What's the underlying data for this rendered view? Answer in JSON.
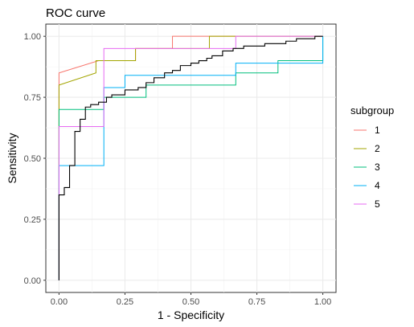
{
  "chart_data": {
    "type": "line",
    "title": "ROC curve",
    "xlabel": "1 - Specificity",
    "ylabel": "Sensitivity",
    "xlim": [
      -0.05,
      1.05
    ],
    "ylim": [
      -0.05,
      1.05
    ],
    "xticks": [
      0.0,
      0.25,
      0.5,
      0.75,
      1.0
    ],
    "yticks": [
      0.0,
      0.25,
      0.5,
      0.75,
      1.0
    ],
    "x_tick_labels": [
      "0.00",
      "0.25",
      "0.50",
      "0.75",
      "1.00"
    ],
    "y_tick_labels": [
      "0.00",
      "0.25",
      "0.50",
      "0.75",
      "1.00"
    ],
    "grid": true,
    "legend": {
      "title": "subgroup",
      "position": "right"
    },
    "overall": {
      "color": "#000000",
      "x": [
        0,
        0,
        0.02,
        0.02,
        0.04,
        0.04,
        0.06,
        0.06,
        0.08,
        0.08,
        0.1,
        0.1,
        0.12,
        0.12,
        0.15,
        0.15,
        0.18,
        0.18,
        0.2,
        0.2,
        0.25,
        0.25,
        0.3,
        0.3,
        0.33,
        0.33,
        0.36,
        0.36,
        0.4,
        0.4,
        0.43,
        0.43,
        0.46,
        0.46,
        0.5,
        0.5,
        0.53,
        0.53,
        0.56,
        0.56,
        0.58,
        0.58,
        0.62,
        0.62,
        0.66,
        0.66,
        0.7,
        0.7,
        0.74,
        0.74,
        0.78,
        0.78,
        0.82,
        0.82,
        0.86,
        0.86,
        0.9,
        0.9,
        0.94,
        0.94,
        0.97,
        0.97,
        1.0,
        1.0
      ],
      "y": [
        0,
        0.35,
        0.35,
        0.38,
        0.38,
        0.47,
        0.47,
        0.61,
        0.61,
        0.66,
        0.66,
        0.71,
        0.71,
        0.72,
        0.72,
        0.73,
        0.73,
        0.75,
        0.75,
        0.76,
        0.76,
        0.78,
        0.78,
        0.79,
        0.79,
        0.81,
        0.81,
        0.83,
        0.83,
        0.85,
        0.85,
        0.86,
        0.86,
        0.88,
        0.88,
        0.89,
        0.89,
        0.9,
        0.9,
        0.91,
        0.91,
        0.92,
        0.92,
        0.94,
        0.94,
        0.95,
        0.95,
        0.96,
        0.96,
        0.96,
        0.96,
        0.97,
        0.97,
        0.97,
        0.97,
        0.98,
        0.98,
        0.99,
        0.99,
        0.99,
        0.99,
        1.0,
        1.0,
        1.0
      ]
    },
    "series": [
      {
        "name": "1",
        "color": "#F8766D",
        "x": [
          0,
          0,
          0.15,
          0.15,
          0.29,
          0.29,
          0.43,
          0.43,
          0.57,
          0.57,
          1.0
        ],
        "y": [
          0,
          0.85,
          0.9,
          0.9,
          0.9,
          0.95,
          0.95,
          1.0,
          1.0,
          1.0,
          1.0
        ]
      },
      {
        "name": "2",
        "color": "#A3A500",
        "x": [
          0,
          0,
          0.14,
          0.14,
          0.29,
          0.29,
          0.57,
          0.57,
          1.0
        ],
        "y": [
          0,
          0.8,
          0.85,
          0.9,
          0.9,
          0.95,
          0.95,
          1.0,
          1.0
        ]
      },
      {
        "name": "3",
        "color": "#00BF7D",
        "x": [
          0,
          0,
          0.17,
          0.17,
          0.33,
          0.33,
          0.67,
          0.67,
          0.83,
          0.83,
          1.0,
          1.0
        ],
        "y": [
          0,
          0.7,
          0.7,
          0.75,
          0.75,
          0.8,
          0.8,
          0.85,
          0.85,
          0.9,
          0.9,
          1.0
        ]
      },
      {
        "name": "4",
        "color": "#00B0F6",
        "x": [
          0,
          0,
          0.17,
          0.17,
          0.25,
          0.25,
          0.67,
          0.67,
          1.0,
          1.0
        ],
        "y": [
          0,
          0.47,
          0.47,
          0.79,
          0.79,
          0.84,
          0.84,
          0.89,
          0.89,
          1.0
        ]
      },
      {
        "name": "5",
        "color": "#E76BF3",
        "x": [
          0,
          0,
          0.17,
          0.17,
          0.67,
          0.67,
          1.0
        ],
        "y": [
          0,
          0.63,
          0.63,
          0.95,
          0.95,
          1.0,
          1.0
        ]
      }
    ]
  }
}
